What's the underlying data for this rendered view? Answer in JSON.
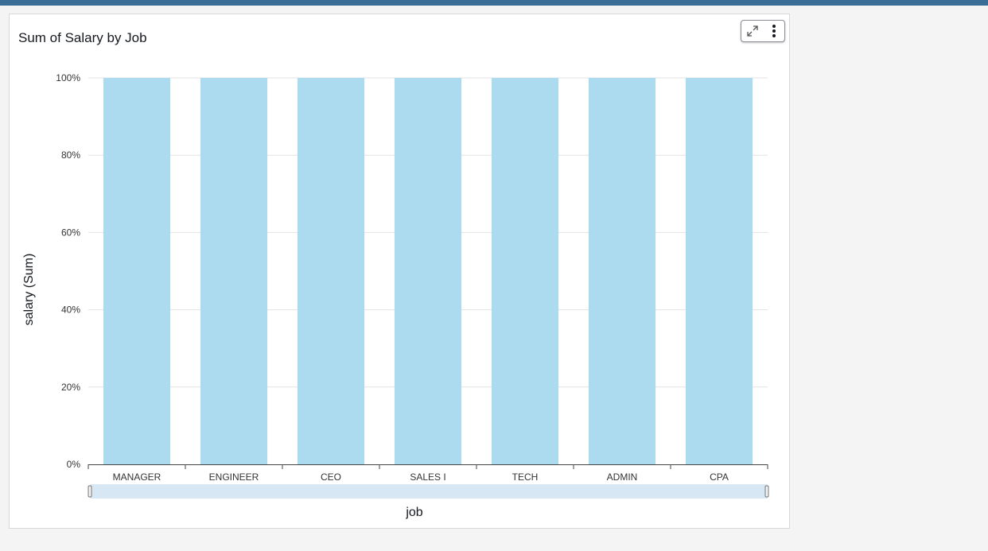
{
  "chart_data": {
    "type": "bar",
    "title": "Sum of Salary by Job",
    "xlabel": "job",
    "ylabel": "salary (Sum)",
    "categories": [
      "MANAGER",
      "ENGINEER",
      "CEO",
      "SALES I",
      "TECH",
      "ADMIN",
      "CPA"
    ],
    "values": [
      100,
      100,
      100,
      100,
      100,
      100,
      100
    ],
    "yticks": [
      "0%",
      "20%",
      "40%",
      "60%",
      "80%",
      "100%"
    ],
    "ylim": [
      0,
      100
    ],
    "grid": true,
    "bar_color": "#acdaee",
    "scrollbar_color": "#d7e8f4"
  },
  "toolbar": {
    "expand_icon": "expand-arrows",
    "menu_icon": "vertical-dots"
  },
  "colors": {
    "top_bar": "#3b6e96",
    "background": "#f4f4f4"
  }
}
